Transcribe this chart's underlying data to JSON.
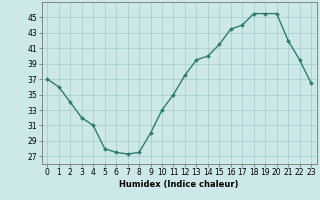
{
  "x": [
    0,
    1,
    2,
    3,
    4,
    5,
    6,
    7,
    8,
    9,
    10,
    11,
    12,
    13,
    14,
    15,
    16,
    17,
    18,
    19,
    20,
    21,
    22,
    23
  ],
  "y": [
    37,
    36,
    34,
    32,
    31,
    28,
    27.5,
    27.3,
    27.5,
    30,
    33,
    35,
    37.5,
    39.5,
    40,
    41.5,
    43.5,
    44,
    45.5,
    45.5,
    45.5,
    42,
    39.5,
    36.5
  ],
  "line_color": "#2e7d6e",
  "marker": "D",
  "marker_size": 2,
  "line_width": 1.0,
  "bg_color": "#cde8e8",
  "grid_color": "#aacfcf",
  "xlabel": "Humidex (Indice chaleur)",
  "ylabel": "",
  "xlim": [
    -0.5,
    23.5
  ],
  "ylim": [
    26,
    47
  ],
  "yticks": [
    27,
    29,
    31,
    33,
    35,
    37,
    39,
    41,
    43,
    45
  ],
  "xticks": [
    0,
    1,
    2,
    3,
    4,
    5,
    6,
    7,
    8,
    9,
    10,
    11,
    12,
    13,
    14,
    15,
    16,
    17,
    18,
    19,
    20,
    21,
    22,
    23
  ],
  "xlabel_fontsize": 6.0,
  "tick_fontsize": 5.5
}
